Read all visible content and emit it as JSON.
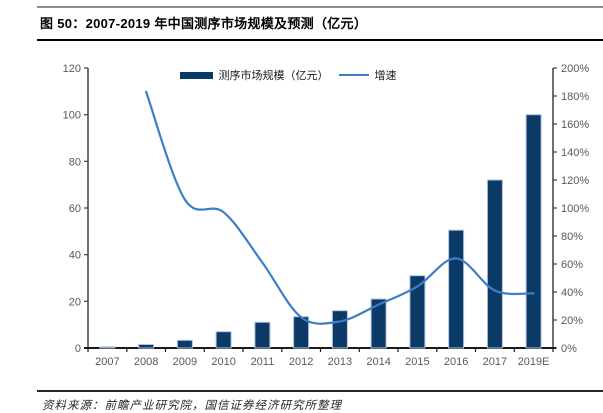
{
  "figure": {
    "title": "图 50：2007-2019 年中国测序市场规模及预测（亿元）",
    "source_note": "资料来源：前瞻产业研究院，国信证券经济研究所整理"
  },
  "legend": {
    "bars_label": "测序市场规模（亿元）",
    "line_label": "增速"
  },
  "chart_data": {
    "type": "bar",
    "subtype": "combo-bar-line",
    "title": "2007-2019 年中国测序市场规模及预测（亿元）",
    "categories": [
      "2007",
      "2008",
      "2009",
      "2010",
      "2011",
      "2012",
      "2013",
      "2014",
      "2015",
      "2016",
      "2017",
      "2019E"
    ],
    "series": [
      {
        "name": "测序市场规模（亿元）",
        "type": "bar",
        "axis": "left",
        "values": [
          0.5,
          1.5,
          3.3,
          7,
          11,
          13.4,
          16,
          21,
          31,
          50.5,
          72,
          100
        ]
      },
      {
        "name": "增速",
        "type": "line",
        "axis": "right",
        "values": [
          null,
          183,
          106,
          97,
          61,
          22,
          19,
          31,
          44,
          64,
          41,
          39
        ]
      }
    ],
    "left_axis": {
      "min": 0,
      "max": 120,
      "step": 20,
      "ticks": [
        "0",
        "20",
        "40",
        "60",
        "80",
        "100",
        "120"
      ]
    },
    "right_axis": {
      "min": 0,
      "max": 200,
      "step": 20,
      "ticks": [
        "0%",
        "20%",
        "40%",
        "60%",
        "80%",
        "100%",
        "120%",
        "140%",
        "160%",
        "180%",
        "200%"
      ]
    },
    "xlabel": "",
    "ylabel": "",
    "grid": false,
    "legend_position": "top-center",
    "colors": {
      "bar_fill": "#0c3a67",
      "bar_border": "#b0c4de",
      "line": "#3d7dc8",
      "axis": "#404040",
      "x_axis": "#1a1a1a",
      "tick_label": "#595959"
    }
  }
}
